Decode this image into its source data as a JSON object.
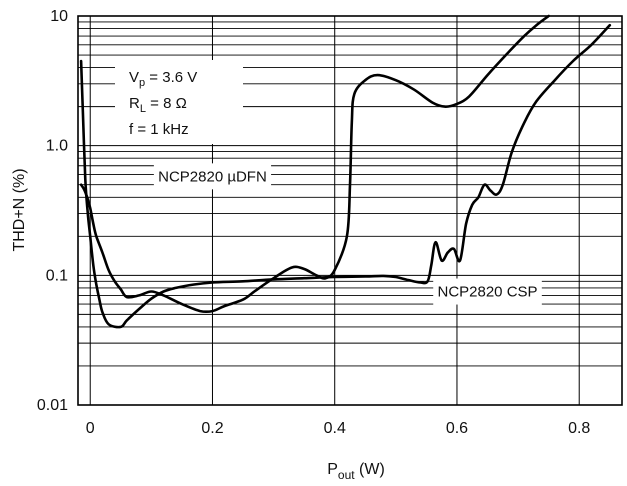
{
  "chart_data": {
    "type": "line",
    "xlabel_main": "P",
    "xlabel_sub": "out",
    "xlabel_unit": " (W)",
    "ylabel": "THD+N (%)",
    "xlim": [
      -0.02,
      0.87
    ],
    "ylim": [
      0.01,
      10
    ],
    "y_scale": "log",
    "grid": true,
    "x_ticks": [
      0.0,
      0.2,
      0.4,
      0.6,
      0.8
    ],
    "x_tick_labels": [
      "0",
      "0.2",
      "0.4",
      "0.6",
      "0.8"
    ],
    "y_ticks": [
      0.01,
      0.1,
      1.0,
      10
    ],
    "y_tick_labels": [
      "0.01",
      "0.1",
      "1.0",
      "10"
    ],
    "conditions": {
      "line1_main": "V",
      "line1_sub": "p",
      "line1_rest": " = 3.6 V",
      "line2_main": "R",
      "line2_sub": "L",
      "line2_rest": " = 8 Ω",
      "line3": "f = 1 kHz"
    },
    "series": [
      {
        "name": "NCP2820 µDFN",
        "points": [
          [
            -0.015,
            4.5
          ],
          [
            -0.012,
            1.8
          ],
          [
            -0.008,
            0.55
          ],
          [
            -0.004,
            0.3
          ],
          [
            0.0,
            0.2
          ],
          [
            0.005,
            0.12
          ],
          [
            0.01,
            0.085
          ],
          [
            0.015,
            0.065
          ],
          [
            0.02,
            0.052
          ],
          [
            0.03,
            0.042
          ],
          [
            0.05,
            0.04
          ],
          [
            0.06,
            0.045
          ],
          [
            0.08,
            0.055
          ],
          [
            0.1,
            0.066
          ],
          [
            0.12,
            0.075
          ],
          [
            0.14,
            0.08
          ],
          [
            0.17,
            0.085
          ],
          [
            0.2,
            0.088
          ],
          [
            0.25,
            0.09
          ],
          [
            0.3,
            0.093
          ],
          [
            0.35,
            0.095
          ],
          [
            0.4,
            0.097
          ],
          [
            0.45,
            0.098
          ],
          [
            0.48,
            0.099
          ],
          [
            0.5,
            0.097
          ],
          [
            0.52,
            0.092
          ],
          [
            0.54,
            0.088
          ],
          [
            0.552,
            0.09
          ],
          [
            0.558,
            0.12
          ],
          [
            0.565,
            0.18
          ],
          [
            0.575,
            0.13
          ],
          [
            0.585,
            0.15
          ],
          [
            0.595,
            0.16
          ],
          [
            0.605,
            0.13
          ],
          [
            0.615,
            0.25
          ],
          [
            0.625,
            0.35
          ],
          [
            0.635,
            0.4
          ],
          [
            0.645,
            0.5
          ],
          [
            0.655,
            0.45
          ],
          [
            0.665,
            0.42
          ],
          [
            0.675,
            0.5
          ],
          [
            0.69,
            0.9
          ],
          [
            0.71,
            1.5
          ],
          [
            0.73,
            2.2
          ],
          [
            0.76,
            3.2
          ],
          [
            0.79,
            4.5
          ],
          [
            0.82,
            6.0
          ],
          [
            0.85,
            8.5
          ]
        ]
      },
      {
        "name": "NCP2820 CSP",
        "points": [
          [
            -0.015,
            0.5
          ],
          [
            -0.01,
            0.46
          ],
          [
            -0.005,
            0.4
          ],
          [
            0.0,
            0.33
          ],
          [
            0.005,
            0.25
          ],
          [
            0.01,
            0.2
          ],
          [
            0.02,
            0.15
          ],
          [
            0.03,
            0.11
          ],
          [
            0.04,
            0.09
          ],
          [
            0.05,
            0.078
          ],
          [
            0.06,
            0.068
          ],
          [
            0.08,
            0.07
          ],
          [
            0.1,
            0.075
          ],
          [
            0.12,
            0.07
          ],
          [
            0.15,
            0.06
          ],
          [
            0.18,
            0.053
          ],
          [
            0.2,
            0.053
          ],
          [
            0.22,
            0.058
          ],
          [
            0.25,
            0.065
          ],
          [
            0.27,
            0.076
          ],
          [
            0.3,
            0.095
          ],
          [
            0.33,
            0.115
          ],
          [
            0.35,
            0.112
          ],
          [
            0.37,
            0.1
          ],
          [
            0.385,
            0.095
          ],
          [
            0.4,
            0.11
          ],
          [
            0.42,
            0.2
          ],
          [
            0.425,
            0.5
          ],
          [
            0.428,
            1.5
          ],
          [
            0.432,
            2.5
          ],
          [
            0.45,
            3.2
          ],
          [
            0.47,
            3.5
          ],
          [
            0.5,
            3.2
          ],
          [
            0.53,
            2.7
          ],
          [
            0.56,
            2.15
          ],
          [
            0.58,
            2.0
          ],
          [
            0.6,
            2.1
          ],
          [
            0.62,
            2.4
          ],
          [
            0.65,
            3.5
          ],
          [
            0.68,
            5.0
          ],
          [
            0.71,
            7.0
          ],
          [
            0.73,
            8.5
          ],
          [
            0.75,
            10.0
          ]
        ]
      }
    ],
    "annotations": [
      {
        "text": "NCP2820 µDFN",
        "x": 0.2,
        "y": 0.58
      },
      {
        "text": "NCP2820 CSP",
        "x": 0.65,
        "y": 0.075
      }
    ]
  }
}
